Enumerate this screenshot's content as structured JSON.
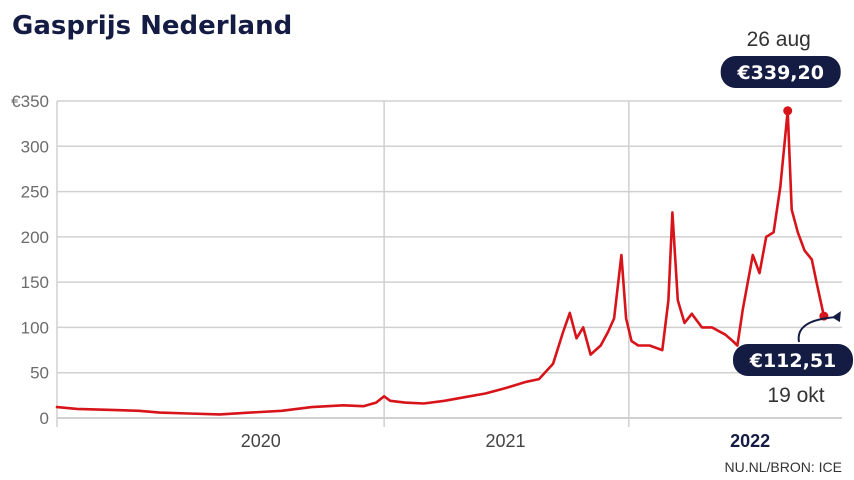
{
  "chart_data": {
    "type": "line",
    "title": "Gasprijs Nederland",
    "source": "NU.NL/BRON: ICE",
    "ylim": [
      0,
      350
    ],
    "y_ticks": [
      {
        "value": 0,
        "label": "0"
      },
      {
        "value": 50,
        "label": "50"
      },
      {
        "value": 100,
        "label": "100"
      },
      {
        "value": 150,
        "label": "150"
      },
      {
        "value": 200,
        "label": "200"
      },
      {
        "value": 250,
        "label": "250"
      },
      {
        "value": 300,
        "label": "300"
      },
      {
        "value": 350,
        "label": "€350"
      }
    ],
    "x_range": [
      "2019-09-01",
      "2022-11-15"
    ],
    "x_tick_labels": [
      {
        "label": "2020",
        "date": "2020-07-01",
        "bold": false
      },
      {
        "label": "2021",
        "date": "2021-07-01",
        "bold": false
      },
      {
        "label": "2022",
        "date": "2022-07-01",
        "bold": true
      }
    ],
    "x_gridlines": [
      "2019-09-01",
      "2021-01-01",
      "2022-01-01"
    ],
    "grid": true,
    "series": [
      {
        "color": "#d7141a",
        "points": [
          [
            "2019-09-01",
            12
          ],
          [
            "2019-10-01",
            10
          ],
          [
            "2019-11-15",
            9
          ],
          [
            "2020-01-01",
            8
          ],
          [
            "2020-02-01",
            6
          ],
          [
            "2020-03-15",
            5
          ],
          [
            "2020-05-01",
            4
          ],
          [
            "2020-06-15",
            6
          ],
          [
            "2020-08-01",
            8
          ],
          [
            "2020-09-15",
            12
          ],
          [
            "2020-11-01",
            14
          ],
          [
            "2020-12-01",
            13
          ],
          [
            "2020-12-20",
            17
          ],
          [
            "2021-01-01",
            24
          ],
          [
            "2021-01-10",
            19
          ],
          [
            "2021-02-01",
            17
          ],
          [
            "2021-03-01",
            16
          ],
          [
            "2021-04-01",
            19
          ],
          [
            "2021-05-01",
            23
          ],
          [
            "2021-06-01",
            27
          ],
          [
            "2021-07-01",
            33
          ],
          [
            "2021-08-01",
            40
          ],
          [
            "2021-08-20",
            43
          ],
          [
            "2021-09-10",
            60
          ],
          [
            "2021-09-25",
            95
          ],
          [
            "2021-10-05",
            116
          ],
          [
            "2021-10-15",
            88
          ],
          [
            "2021-10-25",
            100
          ],
          [
            "2021-11-05",
            70
          ],
          [
            "2021-11-20",
            80
          ],
          [
            "2021-12-01",
            95
          ],
          [
            "2021-12-10",
            110
          ],
          [
            "2021-12-21",
            180
          ],
          [
            "2021-12-28",
            110
          ],
          [
            "2022-01-05",
            85
          ],
          [
            "2022-01-15",
            80
          ],
          [
            "2022-02-01",
            80
          ],
          [
            "2022-02-20",
            75
          ],
          [
            "2022-03-01",
            130
          ],
          [
            "2022-03-07",
            227
          ],
          [
            "2022-03-15",
            130
          ],
          [
            "2022-03-25",
            105
          ],
          [
            "2022-04-05",
            115
          ],
          [
            "2022-04-20",
            100
          ],
          [
            "2022-05-05",
            100
          ],
          [
            "2022-05-25",
            92
          ],
          [
            "2022-06-05",
            85
          ],
          [
            "2022-06-12",
            80
          ],
          [
            "2022-06-20",
            120
          ],
          [
            "2022-07-05",
            180
          ],
          [
            "2022-07-15",
            160
          ],
          [
            "2022-07-25",
            200
          ],
          [
            "2022-08-05",
            205
          ],
          [
            "2022-08-15",
            255
          ],
          [
            "2022-08-26",
            339.2
          ],
          [
            "2022-09-01",
            230
          ],
          [
            "2022-09-10",
            205
          ],
          [
            "2022-09-20",
            185
          ],
          [
            "2022-10-01",
            175
          ],
          [
            "2022-10-08",
            150
          ],
          [
            "2022-10-19",
            112.51
          ]
        ]
      }
    ],
    "annotations": {
      "peak": {
        "date": "2022-08-26",
        "value": 339.2,
        "date_label": "26 aug",
        "value_label": "€339,20"
      },
      "last": {
        "date": "2022-10-19",
        "value": 112.51,
        "date_label": "19 okt",
        "value_label": "€112,51"
      }
    },
    "colors": {
      "line": "#d7141a",
      "badge": "#151c43",
      "grid": "#d0d0d0",
      "title": "#151c43"
    }
  }
}
